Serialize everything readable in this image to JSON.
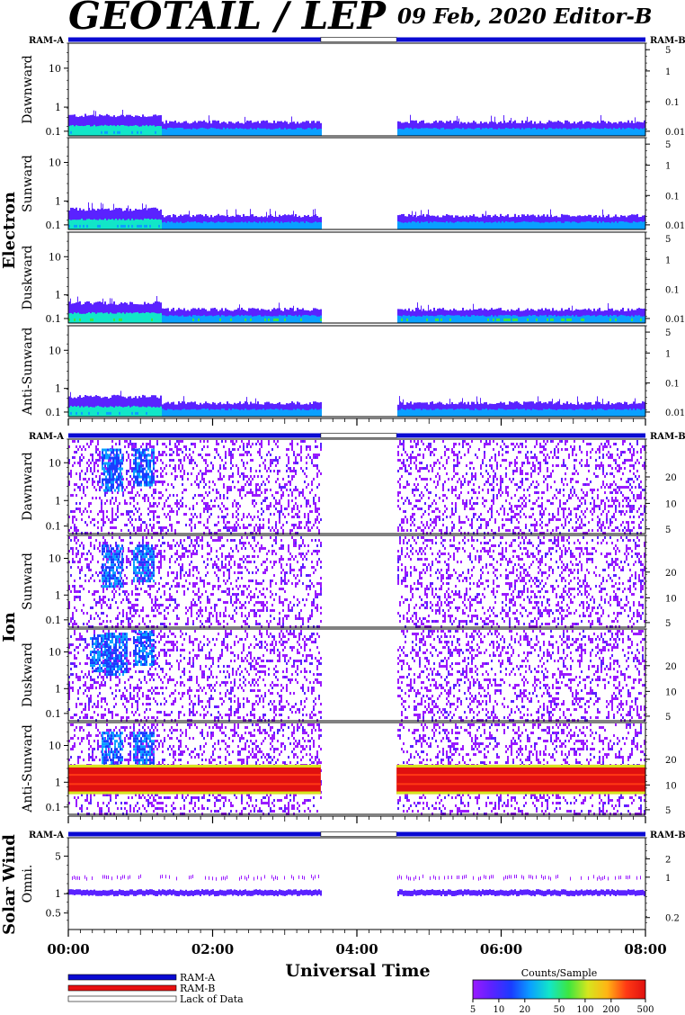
{
  "header": {
    "title": "GEOTAIL / LEP",
    "date": "09 Feb, 2020",
    "editor": "Editor-B"
  },
  "colors": {
    "ram_a": "#0a0ad2",
    "ram_b": "#e81010",
    "lack": "#ffffff",
    "colormap": [
      "#9a1aff",
      "#5a22ff",
      "#1a3cff",
      "#0aa0ff",
      "#12e6c8",
      "#3ee63e",
      "#d6e61e",
      "#ffb414",
      "#ff3a14",
      "#e01010"
    ]
  },
  "chart_data": {
    "type": "heatmap",
    "time_axis": {
      "label": "Universal Time",
      "ticks": [
        "00:00",
        "02:00",
        "04:00",
        "06:00",
        "08:00"
      ],
      "range_hours": [
        0,
        8
      ],
      "data_gap_hours": [
        3.5,
        4.55
      ]
    },
    "groups": [
      {
        "name": "Electron",
        "ram_a_label": "RAM-A",
        "ram_b_label": "RAM-B",
        "panels": [
          {
            "label": "Dawnward",
            "left_ticks": [
              "10",
              "1",
              "0.1"
            ],
            "right_ticks": [
              "5",
              "1",
              "0.1",
              "0.01"
            ]
          },
          {
            "label": "Sunward",
            "left_ticks": [
              "10",
              "1",
              "0.1"
            ],
            "right_ticks": [
              "5",
              "1",
              "0.1",
              "0.01"
            ]
          },
          {
            "label": "Duskward",
            "left_ticks": [
              "10",
              "1",
              "0.1"
            ],
            "right_ticks": [
              "5",
              "1",
              "0.1",
              "0.01"
            ]
          },
          {
            "label": "Anti-Sunward",
            "left_ticks": [
              "10",
              "1",
              "0.1"
            ],
            "right_ticks": [
              "5",
              "1",
              "0.1",
              "0.01"
            ]
          }
        ]
      },
      {
        "name": "Ion",
        "ram_a_label": "RAM-A",
        "ram_b_label": "RAM-B",
        "panels": [
          {
            "label": "Dawnward",
            "left_ticks": [
              "10",
              "1",
              "0.1"
            ],
            "right_ticks": [
              "20",
              "10",
              "5"
            ]
          },
          {
            "label": "Sunward",
            "left_ticks": [
              "10",
              "1",
              "0.1"
            ],
            "right_ticks": [
              "20",
              "10",
              "5"
            ]
          },
          {
            "label": "Duskward",
            "left_ticks": [
              "10",
              "1",
              "0.1"
            ],
            "right_ticks": [
              "20",
              "10",
              "5"
            ]
          },
          {
            "label": "Anti-Sunward",
            "left_ticks": [
              "10",
              "1",
              "0.1"
            ],
            "right_ticks": [
              "20",
              "10",
              "5"
            ]
          }
        ]
      },
      {
        "name": "Solar Wind",
        "ram_a_label": "RAM-A",
        "ram_b_label": "RAM-B",
        "panels": [
          {
            "label": "Omni.",
            "left_ticks": [
              "5",
              "1",
              "0.5"
            ],
            "right_ticks": [
              "2",
              "1",
              "0.2"
            ]
          }
        ]
      }
    ],
    "legend": {
      "items": [
        "RAM-A",
        "RAM-B",
        "Lack of Data"
      ]
    },
    "colorbar": {
      "title": "Counts/Sample",
      "ticks": [
        "5",
        "10",
        "20",
        "50",
        "100",
        "200",
        "500"
      ]
    }
  }
}
